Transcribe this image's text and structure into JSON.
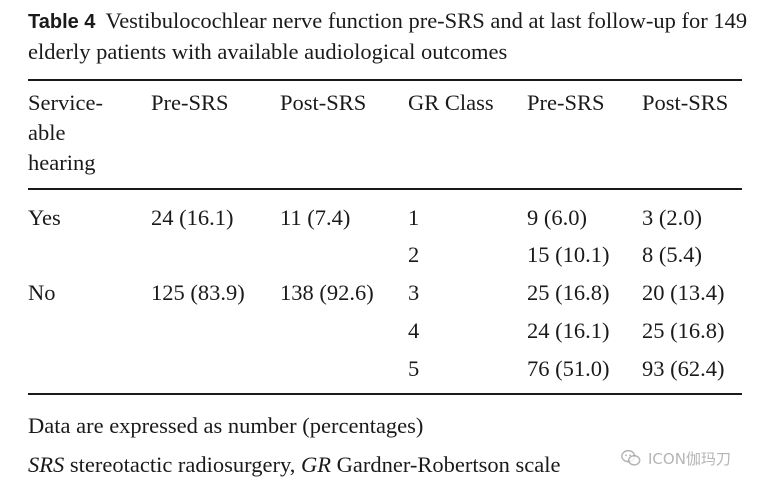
{
  "caption": {
    "label": "Table 4",
    "text": "Vestibulocochlear nerve function pre-SRS and at last follow-up for 149 elderly patients with available audiological outcomes"
  },
  "table": {
    "headers": [
      "Service-",
      "able",
      "hearing",
      "Pre-SRS",
      "Post-SRS",
      "GR Class",
      "Pre-SRS",
      "Post-SRS"
    ],
    "rows": [
      {
        "hearing": "Yes",
        "pre": "24 (16.1)",
        "post": "11 (7.4)",
        "gr": "1",
        "gr_pre": "9 (6.0)",
        "gr_post": "3 (2.0)"
      },
      {
        "hearing": "",
        "pre": "",
        "post": "",
        "gr": "2",
        "gr_pre": "15 (10.1)",
        "gr_post": "8 (5.4)"
      },
      {
        "hearing": "No",
        "pre": "125 (83.9)",
        "post": "138 (92.6)",
        "gr": "3",
        "gr_pre": "25 (16.8)",
        "gr_post": "20 (13.4)"
      },
      {
        "hearing": "",
        "pre": "",
        "post": "",
        "gr": "4",
        "gr_pre": "24 (16.1)",
        "gr_post": "25 (16.8)"
      },
      {
        "hearing": "",
        "pre": "",
        "post": "",
        "gr": "5",
        "gr_pre": "76 (51.0)",
        "gr_post": "93 (62.4)"
      }
    ]
  },
  "footnotes": {
    "line1": "Data are expressed as number (percentages)",
    "abbr1": "SRS",
    "abbr1_def": "stereotactic radiosurgery,",
    "abbr2": "GR",
    "abbr2_def": "Gardner-Robertson scale"
  },
  "watermark": {
    "icon": "wechat-icon",
    "text": "ICON伽玛刀"
  }
}
